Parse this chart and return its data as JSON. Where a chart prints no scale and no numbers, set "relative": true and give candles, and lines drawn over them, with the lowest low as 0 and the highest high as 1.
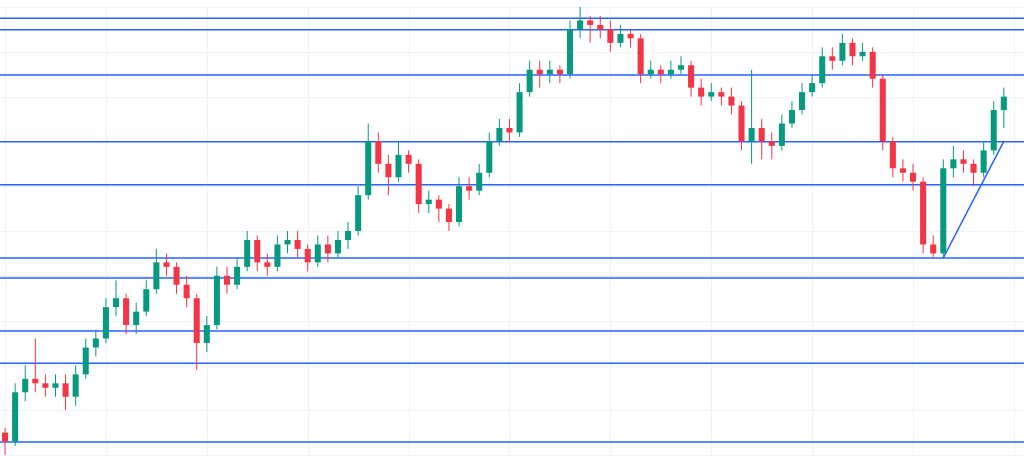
{
  "chart_data": {
    "type": "candlestick",
    "relative": true,
    "grid": true,
    "categories": [
      null,
      null,
      null,
      null,
      null,
      null,
      null,
      null,
      null,
      null,
      null,
      null,
      null,
      null,
      null,
      null,
      null,
      null,
      null,
      null,
      null,
      null,
      null,
      null,
      null,
      null,
      null,
      null,
      null,
      null,
      null,
      null,
      null,
      null,
      null,
      null,
      null,
      null,
      null,
      null,
      null,
      null,
      null,
      null,
      null,
      null,
      null,
      null,
      null,
      null,
      null,
      null,
      null,
      null,
      null,
      null,
      null,
      null,
      null,
      null,
      null,
      null,
      null,
      null,
      null,
      null,
      null,
      null,
      null,
      null,
      null,
      null,
      null,
      null,
      null,
      null,
      null,
      null,
      null,
      null,
      null,
      null,
      null,
      null,
      null,
      null,
      null,
      null,
      null,
      null,
      null,
      null,
      null,
      null,
      null,
      null,
      null,
      null,
      null,
      null
    ],
    "ohlc": [
      [
        0.05,
        0.06,
        0.0,
        0.03
      ],
      [
        0.03,
        0.16,
        0.02,
        0.14
      ],
      [
        0.14,
        0.2,
        0.12,
        0.17
      ],
      [
        0.17,
        0.26,
        0.14,
        0.16
      ],
      [
        0.16,
        0.18,
        0.13,
        0.15
      ],
      [
        0.15,
        0.18,
        0.13,
        0.16
      ],
      [
        0.16,
        0.18,
        0.1,
        0.13
      ],
      [
        0.13,
        0.2,
        0.11,
        0.18
      ],
      [
        0.18,
        0.26,
        0.17,
        0.24
      ],
      [
        0.24,
        0.28,
        0.22,
        0.26
      ],
      [
        0.26,
        0.35,
        0.25,
        0.33
      ],
      [
        0.33,
        0.39,
        0.31,
        0.35
      ],
      [
        0.35,
        0.36,
        0.27,
        0.29
      ],
      [
        0.29,
        0.34,
        0.27,
        0.32
      ],
      [
        0.32,
        0.39,
        0.31,
        0.37
      ],
      [
        0.37,
        0.46,
        0.36,
        0.43
      ],
      [
        0.43,
        0.45,
        0.4,
        0.42
      ],
      [
        0.42,
        0.43,
        0.36,
        0.38
      ],
      [
        0.38,
        0.4,
        0.33,
        0.35
      ],
      [
        0.35,
        0.36,
        0.19,
        0.25
      ],
      [
        0.25,
        0.31,
        0.23,
        0.29
      ],
      [
        0.29,
        0.42,
        0.28,
        0.4
      ],
      [
        0.4,
        0.42,
        0.36,
        0.38
      ],
      [
        0.38,
        0.44,
        0.37,
        0.42
      ],
      [
        0.42,
        0.5,
        0.41,
        0.48
      ],
      [
        0.48,
        0.49,
        0.41,
        0.43
      ],
      [
        0.43,
        0.45,
        0.4,
        0.42
      ],
      [
        0.42,
        0.49,
        0.41,
        0.47
      ],
      [
        0.47,
        0.5,
        0.45,
        0.48
      ],
      [
        0.48,
        0.5,
        0.44,
        0.46
      ],
      [
        0.46,
        0.47,
        0.41,
        0.43
      ],
      [
        0.43,
        0.49,
        0.42,
        0.47
      ],
      [
        0.47,
        0.49,
        0.43,
        0.45
      ],
      [
        0.45,
        0.5,
        0.44,
        0.48
      ],
      [
        0.48,
        0.52,
        0.46,
        0.5
      ],
      [
        0.5,
        0.6,
        0.49,
        0.58
      ],
      [
        0.58,
        0.74,
        0.57,
        0.7
      ],
      [
        0.7,
        0.72,
        0.63,
        0.65
      ],
      [
        0.65,
        0.67,
        0.58,
        0.62
      ],
      [
        0.62,
        0.7,
        0.61,
        0.67
      ],
      [
        0.67,
        0.68,
        0.63,
        0.65
      ],
      [
        0.65,
        0.66,
        0.54,
        0.56
      ],
      [
        0.56,
        0.59,
        0.54,
        0.57
      ],
      [
        0.57,
        0.58,
        0.52,
        0.55
      ],
      [
        0.55,
        0.56,
        0.5,
        0.52
      ],
      [
        0.52,
        0.62,
        0.51,
        0.6
      ],
      [
        0.6,
        0.62,
        0.57,
        0.59
      ],
      [
        0.59,
        0.65,
        0.58,
        0.63
      ],
      [
        0.63,
        0.72,
        0.62,
        0.7
      ],
      [
        0.7,
        0.75,
        0.69,
        0.73
      ],
      [
        0.73,
        0.75,
        0.7,
        0.72
      ],
      [
        0.72,
        0.83,
        0.71,
        0.81
      ],
      [
        0.81,
        0.88,
        0.8,
        0.86
      ],
      [
        0.86,
        0.88,
        0.82,
        0.85
      ],
      [
        0.85,
        0.88,
        0.83,
        0.86
      ],
      [
        0.86,
        0.87,
        0.83,
        0.85
      ],
      [
        0.85,
        0.97,
        0.84,
        0.95
      ],
      [
        0.95,
        1.0,
        0.93,
        0.97
      ],
      [
        0.97,
        0.98,
        0.92,
        0.96
      ],
      [
        0.96,
        0.98,
        0.93,
        0.95
      ],
      [
        0.95,
        0.97,
        0.9,
        0.92
      ],
      [
        0.92,
        0.96,
        0.91,
        0.94
      ],
      [
        0.94,
        0.95,
        0.91,
        0.93
      ],
      [
        0.93,
        0.94,
        0.83,
        0.85
      ],
      [
        0.85,
        0.88,
        0.84,
        0.86
      ],
      [
        0.86,
        0.87,
        0.83,
        0.85
      ],
      [
        0.85,
        0.88,
        0.84,
        0.86
      ],
      [
        0.86,
        0.89,
        0.85,
        0.87
      ],
      [
        0.87,
        0.88,
        0.8,
        0.82
      ],
      [
        0.82,
        0.84,
        0.78,
        0.8
      ],
      [
        0.8,
        0.83,
        0.79,
        0.81
      ],
      [
        0.81,
        0.82,
        0.78,
        0.8
      ],
      [
        0.8,
        0.82,
        0.76,
        0.78
      ],
      [
        0.78,
        0.79,
        0.68,
        0.7
      ],
      [
        0.7,
        0.86,
        0.65,
        0.73
      ],
      [
        0.73,
        0.75,
        0.66,
        0.7
      ],
      [
        0.7,
        0.72,
        0.66,
        0.69
      ],
      [
        0.69,
        0.76,
        0.68,
        0.74
      ],
      [
        0.74,
        0.79,
        0.73,
        0.77
      ],
      [
        0.77,
        0.83,
        0.76,
        0.81
      ],
      [
        0.81,
        0.85,
        0.8,
        0.83
      ],
      [
        0.83,
        0.91,
        0.82,
        0.89
      ],
      [
        0.89,
        0.91,
        0.86,
        0.88
      ],
      [
        0.88,
        0.94,
        0.87,
        0.92
      ],
      [
        0.92,
        0.93,
        0.87,
        0.89
      ],
      [
        0.89,
        0.92,
        0.88,
        0.9
      ],
      [
        0.9,
        0.91,
        0.82,
        0.84
      ],
      [
        0.84,
        0.85,
        0.68,
        0.7
      ],
      [
        0.7,
        0.71,
        0.62,
        0.64
      ],
      [
        0.64,
        0.66,
        0.61,
        0.63
      ],
      [
        0.63,
        0.65,
        0.59,
        0.61
      ],
      [
        0.61,
        0.62,
        0.45,
        0.47
      ],
      [
        0.47,
        0.49,
        0.44,
        0.45
      ],
      [
        0.45,
        0.66,
        0.44,
        0.64
      ],
      [
        0.64,
        0.69,
        0.62,
        0.66
      ],
      [
        0.66,
        0.68,
        0.63,
        0.65
      ],
      [
        0.65,
        0.66,
        0.6,
        0.63
      ],
      [
        0.63,
        0.7,
        0.62,
        0.68
      ],
      [
        0.68,
        0.79,
        0.67,
        0.77
      ],
      [
        0.77,
        0.82,
        0.73,
        0.8
      ]
    ],
    "colors": [
      "#f23645",
      "#089981",
      "#089981",
      "#f23645",
      "#f23645",
      "#089981",
      "#f23645",
      "#089981",
      "#089981",
      "#089981",
      "#089981",
      "#089981",
      "#f23645",
      "#089981",
      "#089981",
      "#089981",
      "#f23645",
      "#f23645",
      "#f23645",
      "#f23645",
      "#089981",
      "#089981",
      "#f23645",
      "#089981",
      "#089981",
      "#f23645",
      "#f23645",
      "#089981",
      "#089981",
      "#f23645",
      "#f23645",
      "#089981",
      "#f23645",
      "#089981",
      "#089981",
      "#089981",
      "#089981",
      "#f23645",
      "#f23645",
      "#089981",
      "#f23645",
      "#f23645",
      "#089981",
      "#f23645",
      "#f23645",
      "#089981",
      "#f23645",
      "#089981",
      "#089981",
      "#089981",
      "#f23645",
      "#089981",
      "#089981",
      "#f23645",
      "#089981",
      "#f23645",
      "#089981",
      "#089981",
      "#f23645",
      "#f23645",
      "#f23645",
      "#089981",
      "#f23645",
      "#f23645",
      "#089981",
      "#f23645",
      "#089981",
      "#089981",
      "#f23645",
      "#f23645",
      "#089981",
      "#f23645",
      "#f23645",
      "#f23645",
      "#089981",
      "#f23645",
      "#f23645",
      "#089981",
      "#089981",
      "#089981",
      "#089981",
      "#089981",
      "#f23645",
      "#089981",
      "#f23645",
      "#089981",
      "#f23645",
      "#f23645",
      "#f23645",
      "#f23645",
      "#f23645",
      "#f23645",
      "#f23645",
      "#089981",
      "#089981",
      "#f23645",
      "#f23645",
      "#089981",
      "#089981",
      "#089981"
    ],
    "series": [
      {
        "type": "line",
        "values": [
          null,
          null,
          null,
          null,
          null,
          null,
          null,
          null,
          null,
          null,
          null,
          null,
          null,
          null,
          null,
          null,
          null,
          null,
          null,
          null,
          null,
          null,
          null,
          null,
          null,
          null,
          null,
          null,
          null,
          null,
          null,
          null,
          null,
          null,
          null,
          null,
          null,
          null,
          null,
          null,
          null,
          null,
          null,
          null,
          null,
          null,
          null,
          null,
          null,
          null,
          null,
          null,
          null,
          null,
          null,
          null,
          null,
          null,
          null,
          null,
          null,
          null,
          null,
          null,
          null,
          null,
          null,
          null,
          null,
          null,
          null,
          null,
          null,
          null,
          null,
          null,
          null,
          null,
          null,
          null,
          null,
          null,
          null,
          null,
          null,
          null,
          null,
          null,
          null,
          null,
          null,
          null,
          null,
          0.44,
          null,
          null,
          null,
          null,
          null,
          0.7
        ],
        "color": "#2962ff"
      }
    ],
    "ref_lines": [
      {
        "axis": "y",
        "value": 0.975,
        "color": "#2962ff"
      },
      {
        "axis": "y",
        "value": 0.949,
        "color": "#2962ff"
      },
      {
        "axis": "y",
        "value": 0.848,
        "color": "#2962ff"
      },
      {
        "axis": "y",
        "value": 0.699,
        "color": "#2962ff"
      },
      {
        "axis": "y",
        "value": 0.603,
        "color": "#2962ff"
      },
      {
        "axis": "y",
        "value": 0.44,
        "color": "#2962ff"
      },
      {
        "axis": "y",
        "value": 0.395,
        "color": "#2962ff"
      },
      {
        "axis": "y",
        "value": 0.277,
        "color": "#2962ff"
      },
      {
        "axis": "y",
        "value": 0.205,
        "color": "#2962ff"
      },
      {
        "axis": "y",
        "value": 0.029,
        "color": "#2962ff"
      }
    ]
  }
}
